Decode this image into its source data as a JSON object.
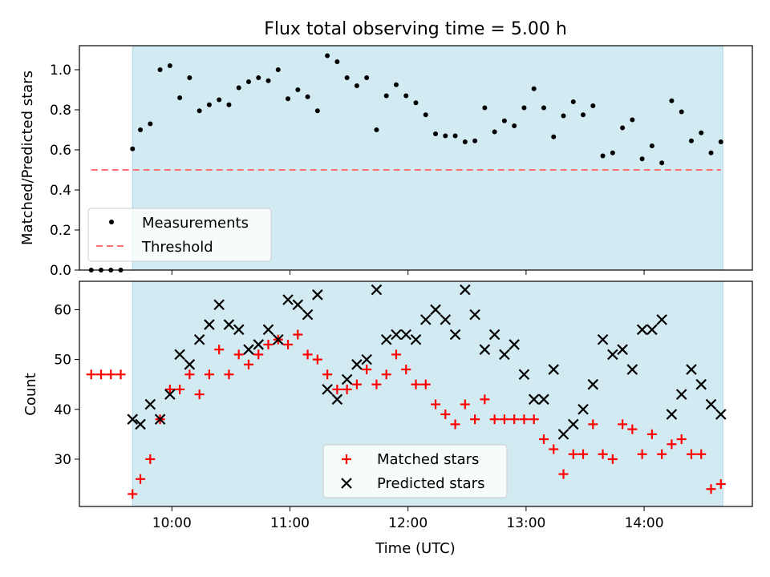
{
  "chart_data": [
    {
      "type": "scatter",
      "title": "Flux total observing time = 5.00 h",
      "xlabel": "",
      "ylabel": "Matched/Predicted stars",
      "xlim": [
        "09:13",
        "14:55"
      ],
      "ylim": [
        0,
        1.12
      ],
      "yticks": [
        0.0,
        0.2,
        0.4,
        0.6,
        0.8,
        1.0
      ],
      "ytick_labels": [
        "0.0",
        "0.2",
        "0.4",
        "0.6",
        "0.8",
        "1.0"
      ],
      "xticks": [
        "10:00",
        "11:00",
        "12:00",
        "13:00",
        "14:00"
      ],
      "xtick_labels_shown": false,
      "shaded_span": [
        "09:40",
        "14:40"
      ],
      "shaded_color": "#add8e6",
      "legend_position": "lower left",
      "series": [
        {
          "name": "Measurements",
          "marker": "dot",
          "color": "#000000",
          "x": [
            "09:19",
            "09:24",
            "09:29",
            "09:34",
            "09:40",
            "09:44",
            "09:49",
            "09:54",
            "09:59",
            "10:04",
            "10:09",
            "10:14",
            "10:19",
            "10:24",
            "10:29",
            "10:34",
            "10:39",
            "10:44",
            "10:49",
            "10:54",
            "10:59",
            "11:04",
            "11:09",
            "11:14",
            "11:19",
            "11:24",
            "11:29",
            "11:34",
            "11:39",
            "11:44",
            "11:49",
            "11:54",
            "11:59",
            "12:04",
            "12:09",
            "12:14",
            "12:19",
            "12:24",
            "12:29",
            "12:34",
            "12:39",
            "12:44",
            "12:49",
            "12:54",
            "12:59",
            "13:04",
            "13:09",
            "13:14",
            "13:19",
            "13:24",
            "13:29",
            "13:34",
            "13:39",
            "13:44",
            "13:49",
            "13:54",
            "13:59",
            "14:04",
            "14:09",
            "14:14",
            "14:19",
            "14:24",
            "14:29",
            "14:34",
            "14:39"
          ],
          "y": [
            0.0,
            0.0,
            0.0,
            0.0,
            0.605,
            0.7,
            0.73,
            1.0,
            1.02,
            0.86,
            0.96,
            0.795,
            0.825,
            0.85,
            0.825,
            0.91,
            0.94,
            0.96,
            0.945,
            1.0,
            0.855,
            0.9,
            0.865,
            0.795,
            1.07,
            1.04,
            0.96,
            0.92,
            0.96,
            0.7,
            0.87,
            0.925,
            0.87,
            0.835,
            0.775,
            0.68,
            0.67,
            0.67,
            0.64,
            0.645,
            0.81,
            0.69,
            0.745,
            0.72,
            0.81,
            0.905,
            0.81,
            0.665,
            0.77,
            0.84,
            0.775,
            0.82,
            0.57,
            0.585,
            0.71,
            0.75,
            0.555,
            0.62,
            0.535,
            0.845,
            0.79,
            0.645,
            0.685,
            0.585,
            0.64
          ]
        },
        {
          "name": "Threshold",
          "marker": "dashed-line",
          "color": "#ff7070",
          "x": [
            "09:19",
            "14:39"
          ],
          "y": [
            0.5,
            0.5
          ]
        }
      ]
    },
    {
      "type": "scatter",
      "title": "",
      "xlabel": "Time (UTC)",
      "ylabel": "Count",
      "xlim": [
        "09:13",
        "14:55"
      ],
      "ylim": [
        20.5,
        65.7
      ],
      "yticks": [
        30,
        40,
        50,
        60
      ],
      "ytick_labels": [
        "30",
        "40",
        "50",
        "60"
      ],
      "xticks": [
        "10:00",
        "11:00",
        "12:00",
        "13:00",
        "14:00"
      ],
      "xtick_labels": [
        "10:00",
        "11:00",
        "12:00",
        "13:00",
        "14:00"
      ],
      "shaded_span": [
        "09:40",
        "14:40"
      ],
      "shaded_color": "#add8e6",
      "legend_position": "lower center",
      "series": [
        {
          "name": "Matched stars",
          "marker": "plus",
          "color": "#ff0000",
          "x": [
            "09:19",
            "09:24",
            "09:29",
            "09:34",
            "09:40",
            "09:44",
            "09:49",
            "09:54",
            "09:59",
            "10:04",
            "10:09",
            "10:14",
            "10:19",
            "10:24",
            "10:29",
            "10:34",
            "10:39",
            "10:44",
            "10:49",
            "10:54",
            "10:59",
            "11:04",
            "11:09",
            "11:14",
            "11:19",
            "11:24",
            "11:29",
            "11:34",
            "11:39",
            "11:44",
            "11:49",
            "11:54",
            "11:59",
            "12:04",
            "12:09",
            "12:14",
            "12:19",
            "12:24",
            "12:29",
            "12:34",
            "12:39",
            "12:44",
            "12:49",
            "12:54",
            "12:59",
            "13:04",
            "13:09",
            "13:14",
            "13:19",
            "13:24",
            "13:29",
            "13:34",
            "13:39",
            "13:44",
            "13:49",
            "13:54",
            "13:59",
            "14:04",
            "14:09",
            "14:14",
            "14:19",
            "14:24",
            "14:29",
            "14:34",
            "14:39"
          ],
          "y": [
            47,
            47,
            47,
            47,
            23,
            26,
            30,
            38,
            44,
            44,
            47,
            43,
            47,
            52,
            47,
            51,
            49,
            51,
            53,
            54,
            53,
            55,
            51,
            50,
            47,
            44,
            44,
            45,
            48,
            45,
            47,
            51,
            48,
            45,
            45,
            41,
            39,
            37,
            41,
            38,
            42,
            38,
            38,
            38,
            38,
            38,
            34,
            32,
            27,
            31,
            31,
            37,
            31,
            30,
            37,
            36,
            31,
            35,
            31,
            33,
            34,
            31,
            31,
            24,
            25
          ]
        },
        {
          "name": "Predicted stars",
          "marker": "x",
          "color": "#000000",
          "x": [
            "09:40",
            "09:44",
            "09:49",
            "09:54",
            "09:59",
            "10:04",
            "10:09",
            "10:14",
            "10:19",
            "10:24",
            "10:29",
            "10:34",
            "10:39",
            "10:44",
            "10:49",
            "10:54",
            "10:59",
            "11:04",
            "11:09",
            "11:14",
            "11:19",
            "11:24",
            "11:29",
            "11:34",
            "11:39",
            "11:44",
            "11:49",
            "11:54",
            "11:59",
            "12:04",
            "12:09",
            "12:14",
            "12:19",
            "12:24",
            "12:29",
            "12:34",
            "12:39",
            "12:44",
            "12:49",
            "12:54",
            "12:59",
            "13:04",
            "13:09",
            "13:14",
            "13:19",
            "13:24",
            "13:29",
            "13:34",
            "13:39",
            "13:44",
            "13:49",
            "13:54",
            "13:59",
            "14:04",
            "14:09",
            "14:14",
            "14:19",
            "14:24",
            "14:29",
            "14:34",
            "14:39"
          ],
          "y": [
            38,
            37,
            41,
            38,
            43,
            51,
            49,
            54,
            57,
            61,
            57,
            56,
            52,
            53,
            56,
            54,
            62,
            61,
            59,
            63,
            44,
            42,
            46,
            49,
            50,
            64,
            54,
            55,
            55,
            54,
            58,
            60,
            58,
            55,
            64,
            59,
            52,
            55,
            51,
            53,
            47,
            42,
            42,
            48,
            35,
            37,
            40,
            45,
            54,
            51,
            52,
            48,
            56,
            56,
            58,
            39,
            43,
            48,
            45,
            41,
            39
          ]
        }
      ]
    }
  ]
}
